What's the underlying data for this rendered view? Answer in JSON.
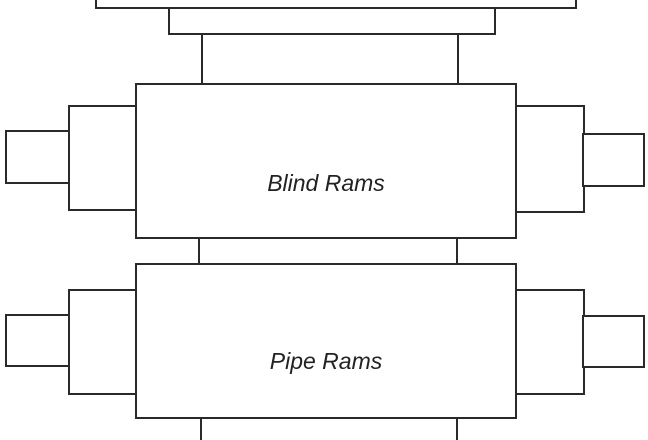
{
  "diagram": {
    "components": [
      {
        "id": "top-flange",
        "label": ""
      },
      {
        "id": "blind-rams",
        "label": "Blind Rams"
      },
      {
        "id": "pipe-rams",
        "label": "Pipe Rams"
      }
    ],
    "colors": {
      "stroke": "#2a2a2a",
      "fill": "#ffffff",
      "text": "#222222"
    }
  }
}
